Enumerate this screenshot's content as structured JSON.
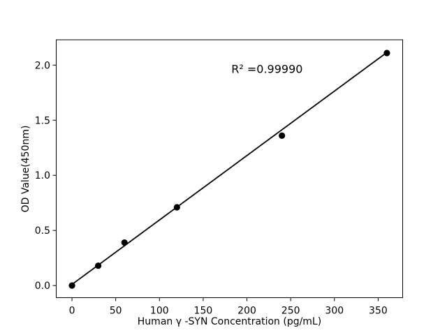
{
  "colors": {
    "background": "#ffffff",
    "foreground": "#000000"
  },
  "chart_data": {
    "type": "scatter",
    "title": "",
    "xlabel": "Human γ -SYN Concentration (pg/mL)",
    "ylabel": "OD Value(450nm)",
    "points": {
      "x": [
        0,
        30,
        60,
        120,
        240,
        360
      ],
      "y": [
        0.0,
        0.18,
        0.39,
        0.71,
        1.36,
        2.11
      ]
    },
    "fit_line": {
      "x": [
        0,
        360
      ],
      "y": [
        0.01,
        2.115
      ]
    },
    "annotation": {
      "text": "R² =0.99990",
      "x": 223,
      "y": 1.93
    },
    "r_squared": 0.9999,
    "xticks": [
      0,
      50,
      100,
      150,
      200,
      250,
      300,
      350
    ],
    "xtick_labels": [
      "0",
      "50",
      "100",
      "150",
      "200",
      "250",
      "300",
      "350"
    ],
    "yticks": [
      0.0,
      0.5,
      1.0,
      1.5,
      2.0
    ],
    "ytick_labels": [
      "0.0",
      "0.5",
      "1.0",
      "1.5",
      "2.0"
    ],
    "xlim": [
      -18,
      378
    ],
    "ylim": [
      -0.11,
      2.23
    ],
    "grid": false,
    "legend": "none",
    "marker_color": "#000000",
    "line_color": "#000000",
    "axis_color": "#000000",
    "text_color": "#000000"
  }
}
